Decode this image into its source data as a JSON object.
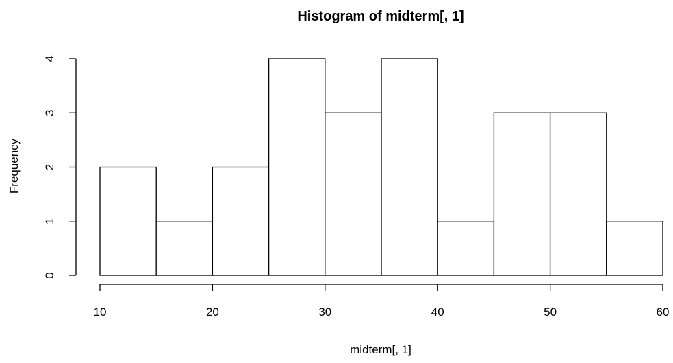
{
  "chart_data": {
    "type": "bar",
    "title": "Histogram of midterm[, 1]",
    "xlabel": "midterm[, 1]",
    "ylabel": "Frequency",
    "bins": [
      {
        "start": 10,
        "end": 15,
        "count": 2
      },
      {
        "start": 15,
        "end": 20,
        "count": 1
      },
      {
        "start": 20,
        "end": 25,
        "count": 2
      },
      {
        "start": 25,
        "end": 30,
        "count": 4
      },
      {
        "start": 30,
        "end": 35,
        "count": 3
      },
      {
        "start": 35,
        "end": 40,
        "count": 4
      },
      {
        "start": 40,
        "end": 45,
        "count": 1
      },
      {
        "start": 45,
        "end": 50,
        "count": 3
      },
      {
        "start": 50,
        "end": 55,
        "count": 3
      },
      {
        "start": 55,
        "end": 60,
        "count": 1
      }
    ],
    "xlim": [
      10,
      60
    ],
    "ylim": [
      0,
      4
    ],
    "x_ticks": [
      10,
      20,
      30,
      40,
      50,
      60
    ],
    "y_ticks": [
      0,
      1,
      2,
      3,
      4
    ],
    "grid": false,
    "bar_fill": "#ffffff",
    "bar_stroke": "#000000"
  }
}
